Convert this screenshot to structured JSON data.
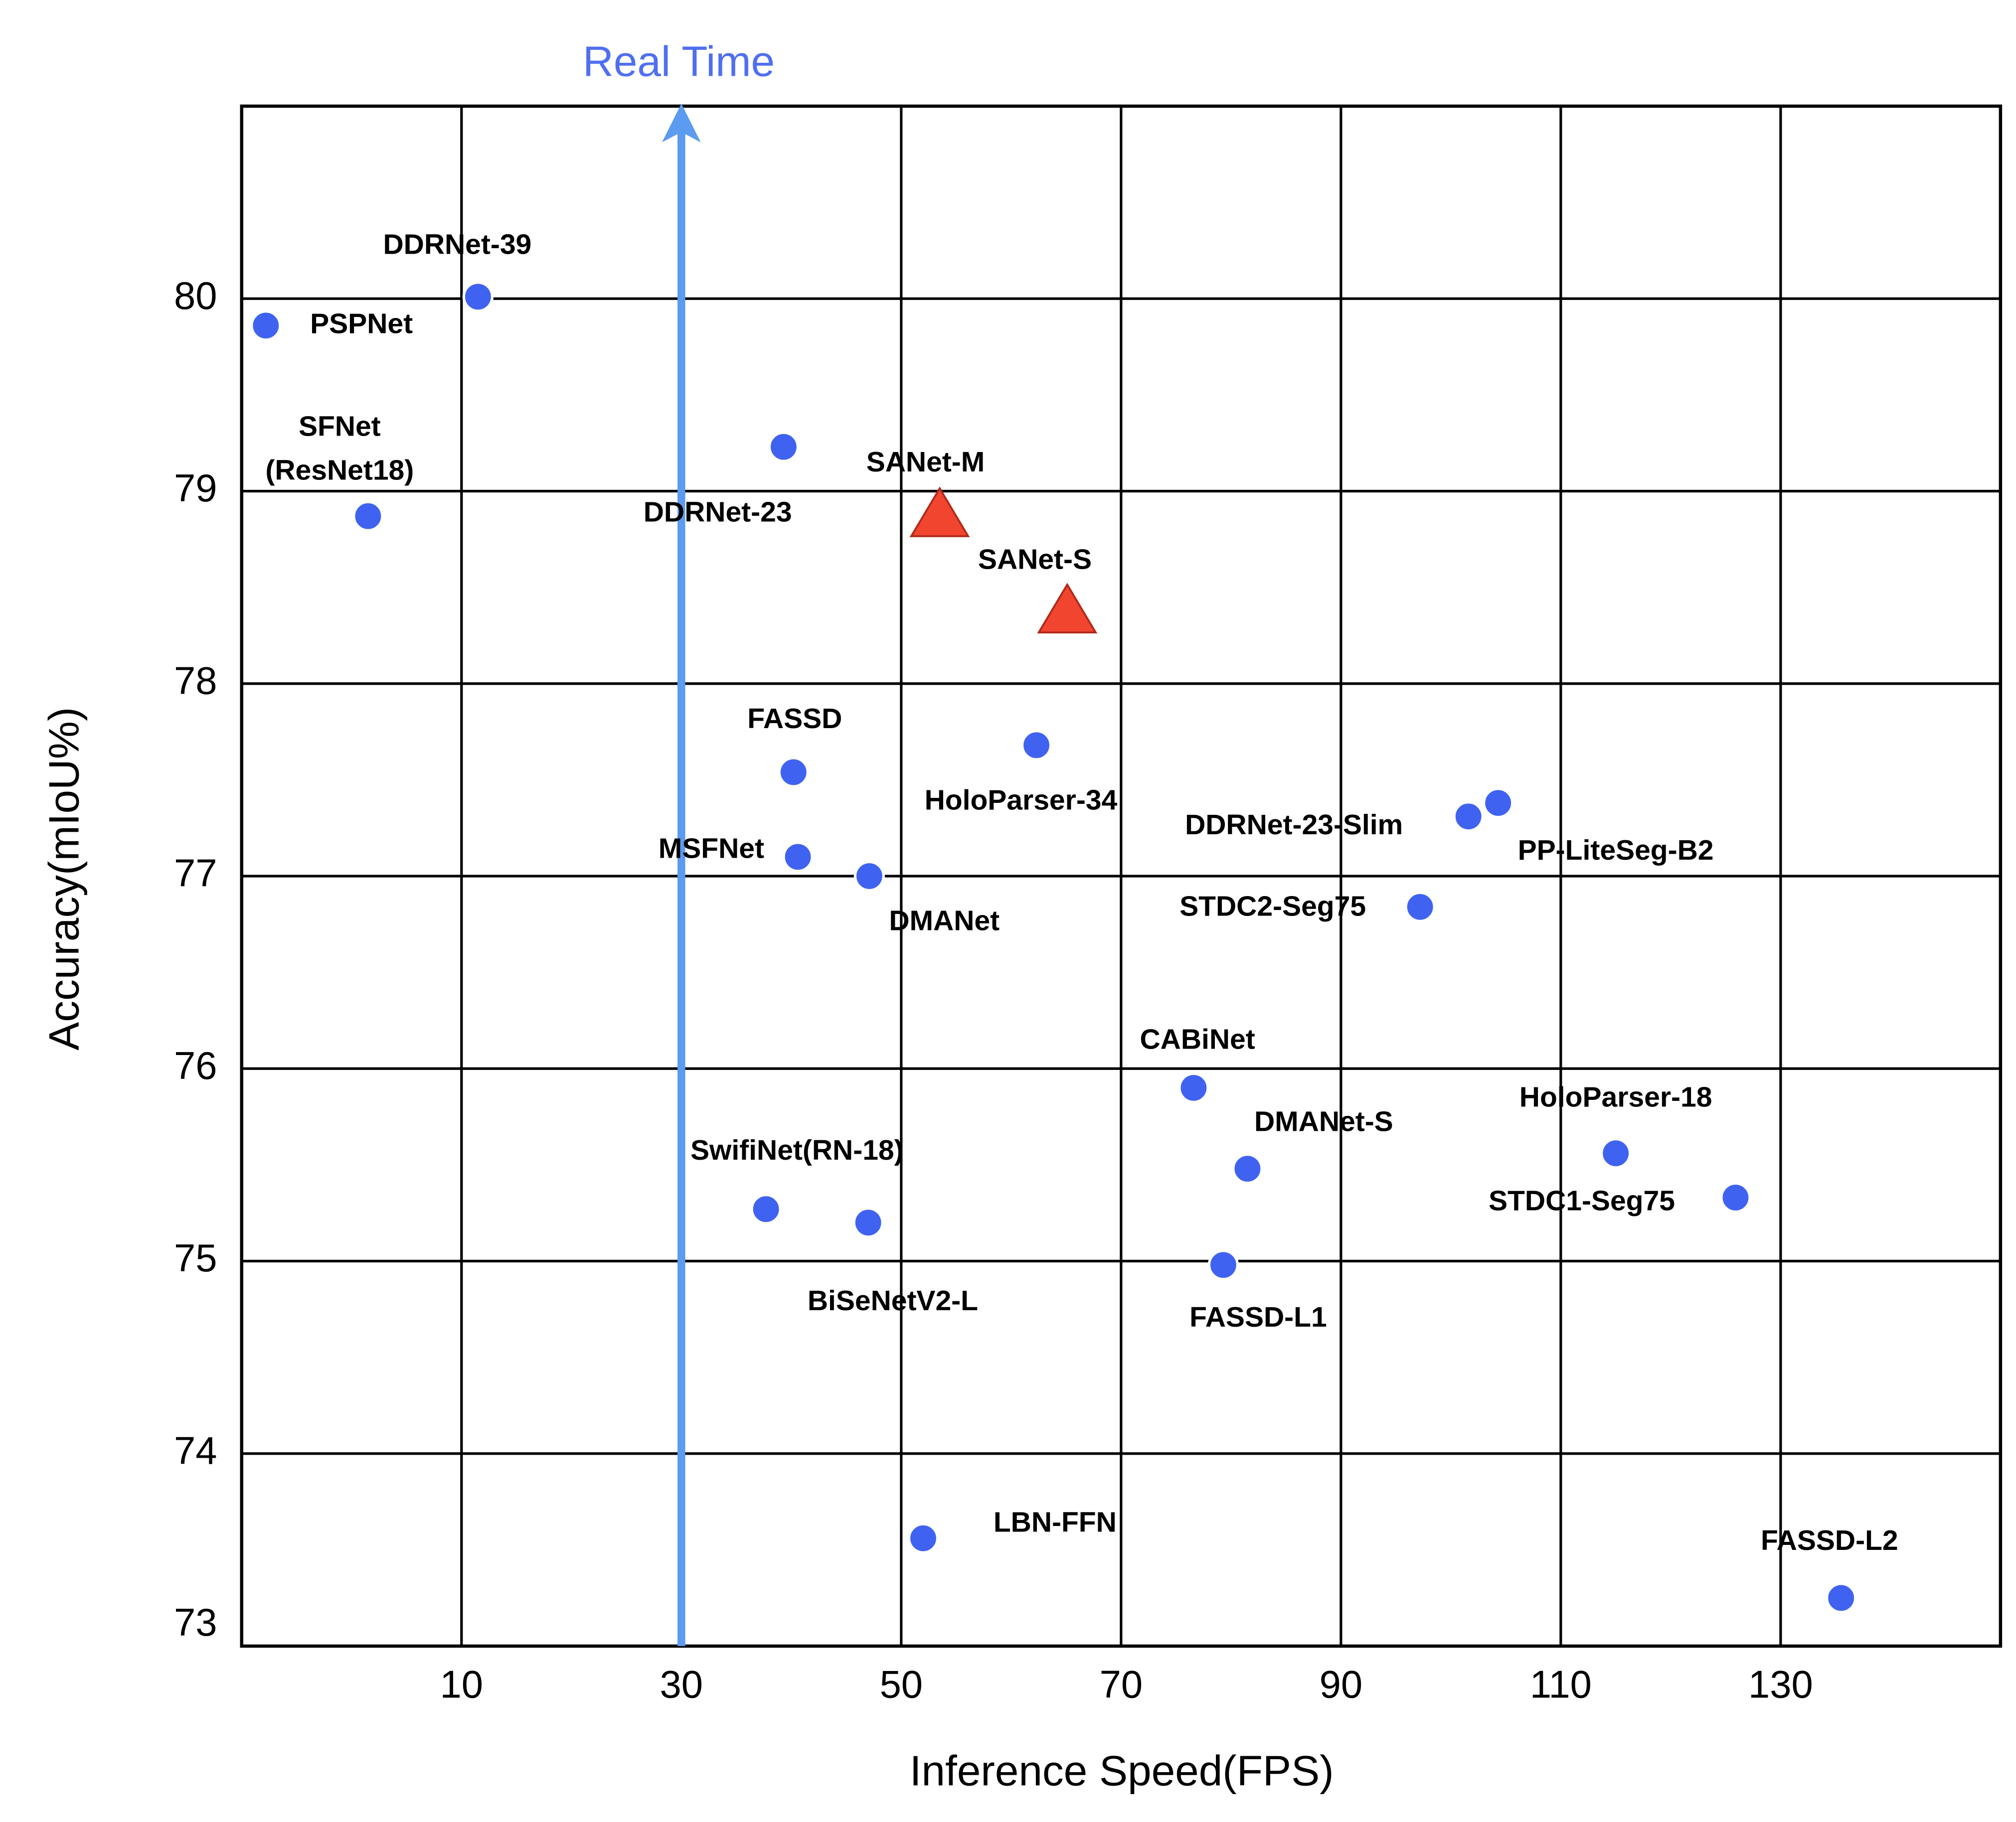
{
  "chart_data": {
    "type": "scatter",
    "xlabel": "Inference Speed(FPS)",
    "ylabel": "Accuracy(mIoU%)",
    "xlim": [
      -10,
      150
    ],
    "ylim": [
      73,
      81
    ],
    "xticks": [
      10,
      30,
      50,
      70,
      90,
      110,
      130
    ],
    "yticks": [
      73,
      74,
      75,
      76,
      77,
      78,
      79,
      80
    ],
    "grid": true,
    "annotation": {
      "text": "Real Time",
      "x": 30,
      "color": "#4f6ff0",
      "line_color": "#5b9bf0"
    },
    "point_labels": [
      "DDRNet-39",
      "PSPNet",
      [
        "SFNet",
        "(ResNet18)"
      ],
      "DDRNet-23",
      "SANet-M",
      "SANet-S",
      "HoloParser-34",
      "FASSD",
      "MSFNet",
      "DMANet",
      "DDRNet-23-Slim",
      "PP-LiteSeg-B2",
      "STDC2-Seg75",
      "CABiNet",
      "DMANet-S",
      "HoloParser-18",
      "STDC1-Seg75",
      "SwifiNet(RN-18)",
      "BiSeNetV2-L",
      "FASSD-L1",
      "LBN-FFN",
      "FASSD-L2"
    ],
    "x": [
      11.5,
      -7.8,
      1.5,
      39.3,
      53.5,
      65.1,
      62.3,
      40.2,
      40.6,
      47.1,
      101.6,
      104.3,
      97.2,
      76.6,
      81.5,
      115.0,
      125.9,
      37.7,
      47.0,
      79.3,
      52.0,
      135.5
    ],
    "y": [
      80.01,
      79.86,
      78.87,
      79.23,
      78.88,
      78.38,
      77.68,
      77.54,
      77.1,
      77.0,
      77.31,
      77.38,
      76.84,
      75.9,
      75.48,
      75.56,
      75.33,
      75.27,
      75.2,
      74.98,
      73.56,
      73.25
    ],
    "shapes": [
      "circle",
      "circle",
      "circle",
      "circle",
      "triangle",
      "triangle",
      "circle",
      "circle",
      "circle",
      "circle",
      "circle",
      "circle",
      "circle",
      "circle",
      "circle",
      "circle",
      "circle",
      "circle",
      "circle",
      "circle",
      "circle",
      "circle"
    ],
    "colors": [
      "#3f63f0",
      "#3f63f0",
      "#3f63f0",
      "#3f63f0",
      "#f24530",
      "#f24530",
      "#3f63f0",
      "#3f63f0",
      "#3f63f0",
      "#3f63f0",
      "#3f63f0",
      "#3f63f0",
      "#3f63f0",
      "#3f63f0",
      "#3f63f0",
      "#3f63f0",
      "#3f63f0",
      "#3f63f0",
      "#3f63f0",
      "#3f63f0",
      "#3f63f0",
      "#3f63f0"
    ]
  }
}
